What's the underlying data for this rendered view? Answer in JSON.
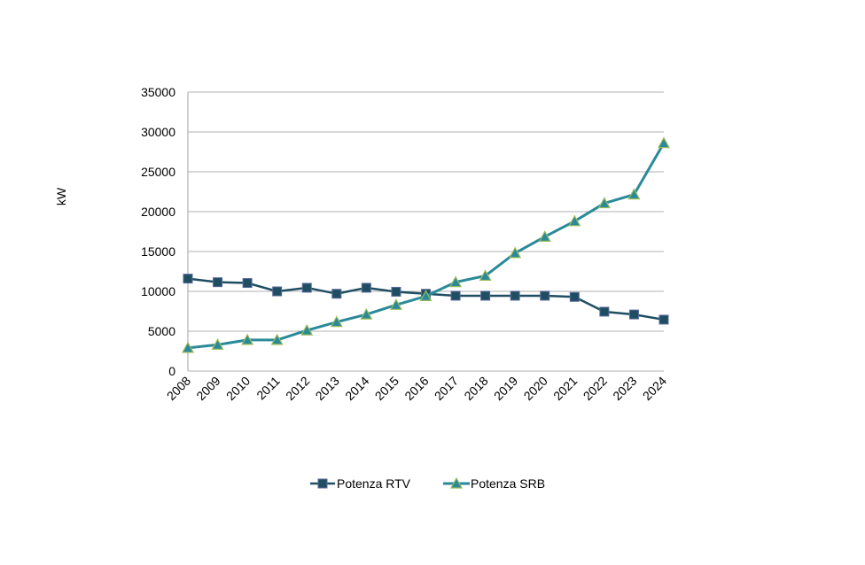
{
  "chart_data": {
    "type": "line",
    "title": "",
    "xlabel": "",
    "ylabel": "kW",
    "ylim": [
      0,
      35000
    ],
    "yticks": [
      "0",
      "5000",
      "10000",
      "15000",
      "20000",
      "25000",
      "30000",
      "35000"
    ],
    "ytick_values": [
      0,
      5000,
      10000,
      15000,
      20000,
      25000,
      30000,
      35000
    ],
    "grid": true,
    "legend_position": "bottom",
    "categories": [
      "2008",
      "2009",
      "2010",
      "2011",
      "2012",
      "2013",
      "2014",
      "2015",
      "2016",
      "2017",
      "2018",
      "2019",
      "2020",
      "2021",
      "2022",
      "2023",
      "2024"
    ],
    "series": [
      {
        "name": "Potenza RTV",
        "marker": "square",
        "color": "#1f4e63",
        "marker_edge": "#5a6a9a",
        "values": [
          11600,
          11150,
          11050,
          10000,
          10450,
          9700,
          10450,
          9950,
          9700,
          9450,
          9450,
          9450,
          9450,
          9300,
          7450,
          7100,
          6450
        ]
      },
      {
        "name": "Potenza SRB",
        "marker": "triangle",
        "color": "#2a8a9a",
        "marker_edge": "#9bbb59",
        "values": [
          2900,
          3300,
          3900,
          3900,
          5100,
          6150,
          7100,
          8300,
          9400,
          11150,
          11950,
          14800,
          16850,
          18800,
          21050,
          22150,
          28600
        ]
      }
    ]
  },
  "colors": {
    "gridline": "#b0b0b0",
    "axis": "#c0c0c0"
  }
}
